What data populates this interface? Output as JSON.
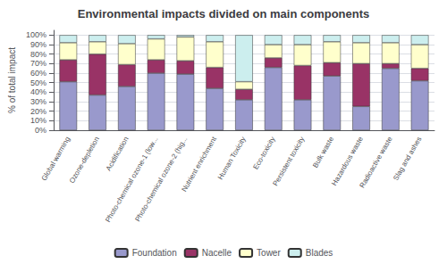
{
  "chart_data": {
    "type": "bar",
    "title": "Environmental impacts divided on main components",
    "ylabel": "% of total impact",
    "categories": [
      "Global warming",
      "Ozone-depletion",
      "Acidification",
      "Photo-chemical ozone-1 (low...",
      "Photo-chemical ozone-2 (hig...",
      "Nutrient enrichment",
      "Human Toxicity",
      "Eco-toxicity",
      "Persistent toxicity",
      "Bulk waste",
      "Hazardous waste",
      "Radioactive waste",
      "Slag and ashes"
    ],
    "series": [
      {
        "name": "Foundation",
        "color": "#9999cc",
        "values": [
          51,
          37,
          46,
          60,
          59,
          44,
          32,
          66,
          32,
          57,
          25,
          65,
          52
        ]
      },
      {
        "name": "Nacelle",
        "color": "#993366",
        "values": [
          23,
          43,
          23,
          14,
          14,
          22,
          11,
          10,
          36,
          14,
          45,
          5,
          13
        ]
      },
      {
        "name": "Tower",
        "color": "#ffffcc",
        "values": [
          18,
          13,
          22,
          22,
          25,
          27,
          8,
          14,
          22,
          22,
          22,
          22,
          25
        ]
      },
      {
        "name": "Blades",
        "color": "#cceeee",
        "values": [
          8,
          7,
          9,
          4,
          2,
          7,
          49,
          10,
          10,
          7,
          8,
          8,
          10
        ]
      }
    ],
    "stacked": true,
    "ylim": [
      0,
      105
    ],
    "yticks": [
      {
        "value": 0,
        "label": "0%"
      },
      {
        "value": 10,
        "label": "10%"
      },
      {
        "value": 20,
        "label": "20%"
      },
      {
        "value": 30,
        "label": "30%"
      },
      {
        "value": 40,
        "label": "40%"
      },
      {
        "value": 50,
        "label": "50%"
      },
      {
        "value": 60,
        "label": "60%"
      },
      {
        "value": 70,
        "label": "70%"
      },
      {
        "value": 80,
        "label": "80%"
      },
      {
        "value": 90,
        "label": "90%"
      },
      {
        "value": 100,
        "label": "100%"
      }
    ],
    "grid": true,
    "legend": "bottom"
  }
}
